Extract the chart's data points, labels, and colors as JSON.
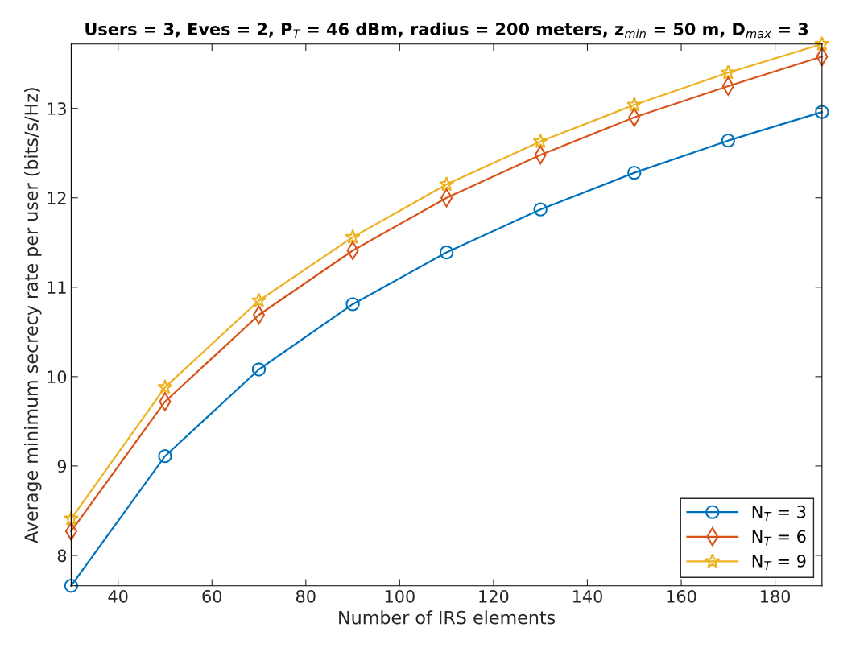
{
  "chart_data": {
    "type": "line",
    "title": "Users = 3, Eves = 2, P$_{T}$ = 46 dBm, radius = 200 meters, z$_{min}$ = 50 m, D$_{max}$ = 3",
    "xlabel": "Number of IRS elements",
    "ylabel": "Average minimum secrecy rate per user (bits/s/Hz)",
    "x": [
      30,
      50,
      70,
      90,
      110,
      130,
      150,
      170,
      190
    ],
    "series": [
      {
        "name": "N$_{T}$ = 3",
        "color": "#0072bd",
        "marker": "circle",
        "values": [
          7.66,
          9.11,
          10.08,
          10.81,
          11.39,
          11.87,
          12.28,
          12.64,
          12.96
        ]
      },
      {
        "name": "N$_{T}$ = 6",
        "color": "#d95319",
        "marker": "diamond",
        "values": [
          8.27,
          9.72,
          10.69,
          11.41,
          12.0,
          12.48,
          12.9,
          13.25,
          13.58
        ]
      },
      {
        "name": "N$_{T}$ = 9",
        "color": "#edb120",
        "marker": "star",
        "values": [
          8.41,
          9.88,
          10.85,
          11.56,
          12.15,
          12.63,
          13.04,
          13.4,
          13.72
        ]
      }
    ],
    "xlim": [
      30,
      190
    ],
    "xticks": [
      40,
      60,
      80,
      100,
      120,
      140,
      160,
      180
    ],
    "ylim": [
      7.66,
      13.72
    ],
    "yticks": [
      8,
      9,
      10,
      11,
      12,
      13
    ],
    "grid": false,
    "legend": "bottom right",
    "line_style": "solid"
  }
}
